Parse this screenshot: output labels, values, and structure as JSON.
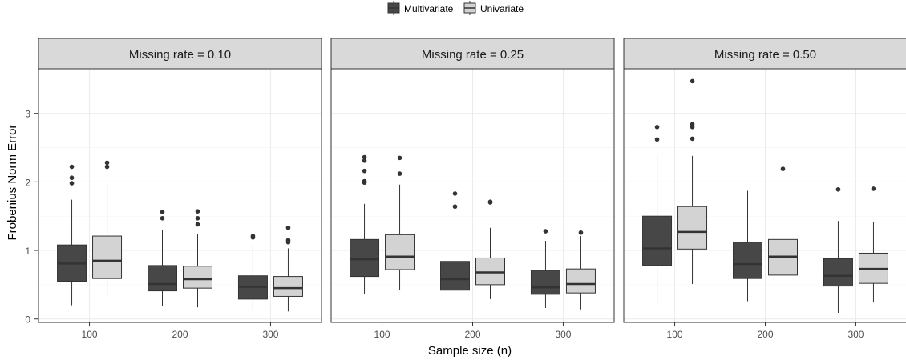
{
  "chart_data": {
    "type": "boxplot",
    "legend": {
      "position": "top",
      "items": [
        {
          "label": "Multivariate",
          "color": "#474747"
        },
        {
          "label": "Univariate",
          "color": "#d3d3d3"
        }
      ]
    },
    "xlabel": "Sample size (n)",
    "ylabel": "Frobenius Norm Error",
    "categories": [
      "100",
      "200",
      "300"
    ],
    "yticks": [
      0,
      1,
      2,
      3
    ],
    "ylim": [
      -0.05,
      3.65
    ],
    "grid": true,
    "panels": [
      {
        "title": "Missing rate = 0.10",
        "boxes": [
          {
            "category": "100",
            "series": "Multivariate",
            "min": 0.2,
            "q1": 0.55,
            "median": 0.81,
            "q3": 1.08,
            "max": 1.74,
            "outliers": [
              1.98,
              2.06,
              2.22
            ]
          },
          {
            "category": "100",
            "series": "Univariate",
            "min": 0.33,
            "q1": 0.59,
            "median": 0.85,
            "q3": 1.21,
            "max": 1.97,
            "outliers": [
              2.22,
              2.28
            ]
          },
          {
            "category": "200",
            "series": "Multivariate",
            "min": 0.19,
            "q1": 0.41,
            "median": 0.51,
            "q3": 0.78,
            "max": 1.3,
            "outliers": [
              1.47,
              1.56
            ]
          },
          {
            "category": "200",
            "series": "Univariate",
            "min": 0.17,
            "q1": 0.45,
            "median": 0.58,
            "q3": 0.77,
            "max": 1.24,
            "outliers": [
              1.38,
              1.47,
              1.57
            ]
          },
          {
            "category": "300",
            "series": "Multivariate",
            "min": 0.13,
            "q1": 0.29,
            "median": 0.47,
            "q3": 0.63,
            "max": 1.08,
            "outliers": [
              1.19,
              1.21
            ]
          },
          {
            "category": "300",
            "series": "Univariate",
            "min": 0.11,
            "q1": 0.33,
            "median": 0.45,
            "q3": 0.62,
            "max": 1.03,
            "outliers": [
              1.12,
              1.15,
              1.33
            ]
          }
        ]
      },
      {
        "title": "Missing rate = 0.25",
        "boxes": [
          {
            "category": "100",
            "series": "Multivariate",
            "min": 0.36,
            "q1": 0.62,
            "median": 0.87,
            "q3": 1.16,
            "max": 1.68,
            "outliers": [
              1.99,
              2.01,
              2.16,
              2.31,
              2.36
            ]
          },
          {
            "category": "100",
            "series": "Univariate",
            "min": 0.42,
            "q1": 0.72,
            "median": 0.91,
            "q3": 1.23,
            "max": 1.96,
            "outliers": [
              2.12,
              2.35
            ]
          },
          {
            "category": "200",
            "series": "Multivariate",
            "min": 0.21,
            "q1": 0.42,
            "median": 0.58,
            "q3": 0.84,
            "max": 1.27,
            "outliers": [
              1.64,
              1.83
            ]
          },
          {
            "category": "200",
            "series": "Univariate",
            "min": 0.29,
            "q1": 0.5,
            "median": 0.68,
            "q3": 0.89,
            "max": 1.33,
            "outliers": [
              1.7,
              1.71
            ]
          },
          {
            "category": "300",
            "series": "Multivariate",
            "min": 0.16,
            "q1": 0.36,
            "median": 0.46,
            "q3": 0.71,
            "max": 1.14,
            "outliers": [
              1.28
            ]
          },
          {
            "category": "300",
            "series": "Univariate",
            "min": 0.14,
            "q1": 0.38,
            "median": 0.51,
            "q3": 0.73,
            "max": 1.21,
            "outliers": [
              1.26
            ]
          }
        ]
      },
      {
        "title": "Missing rate = 0.50",
        "boxes": [
          {
            "category": "100",
            "series": "Multivariate",
            "min": 0.23,
            "q1": 0.78,
            "median": 1.03,
            "q3": 1.5,
            "max": 2.41,
            "outliers": [
              2.62,
              2.8
            ]
          },
          {
            "category": "100",
            "series": "Univariate",
            "min": 0.51,
            "q1": 1.02,
            "median": 1.27,
            "q3": 1.64,
            "max": 2.38,
            "outliers": [
              2.63,
              2.8,
              2.84,
              3.47
            ]
          },
          {
            "category": "200",
            "series": "Multivariate",
            "min": 0.26,
            "q1": 0.59,
            "median": 0.8,
            "q3": 1.12,
            "max": 1.87,
            "outliers": []
          },
          {
            "category": "200",
            "series": "Univariate",
            "min": 0.31,
            "q1": 0.64,
            "median": 0.91,
            "q3": 1.16,
            "max": 1.86,
            "outliers": [
              2.19
            ]
          },
          {
            "category": "300",
            "series": "Multivariate",
            "min": 0.09,
            "q1": 0.48,
            "median": 0.63,
            "q3": 0.88,
            "max": 1.43,
            "outliers": [
              1.89
            ]
          },
          {
            "category": "300",
            "series": "Univariate",
            "min": 0.24,
            "q1": 0.52,
            "median": 0.73,
            "q3": 0.96,
            "max": 1.42,
            "outliers": [
              1.9
            ]
          }
        ]
      }
    ]
  }
}
